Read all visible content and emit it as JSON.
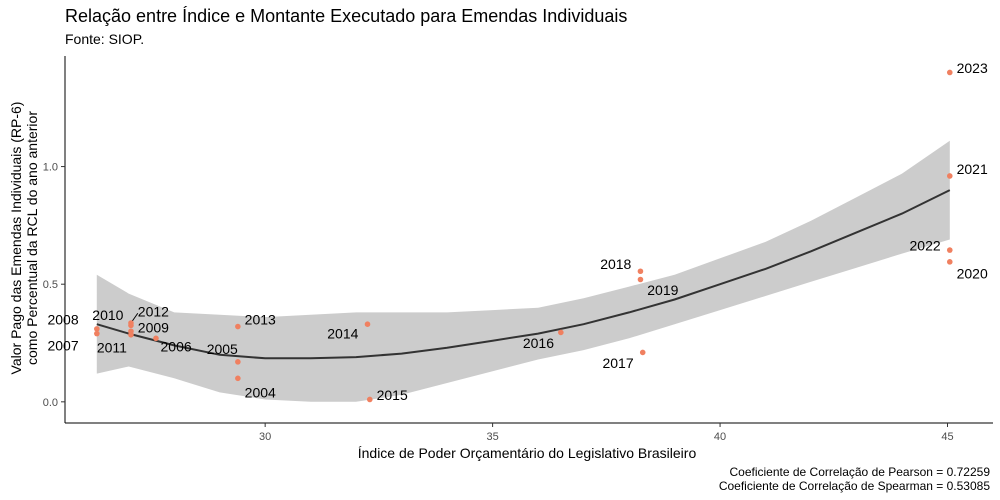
{
  "chart_data": {
    "type": "scatter",
    "title": "Relação entre Índice e Montante Executado para Emendas Individuais",
    "subtitle": "Fonte: SIOP.",
    "xlabel": "Índice de Poder Orçamentário do Legislativo Brasileiro",
    "ylabel_lines": [
      "Valor Pago das Emendas Individuais (RP-6)",
      "como Percentual da RCL do ano anterior"
    ],
    "xlim": [
      25.6,
      46.0
    ],
    "ylim": [
      -0.09,
      1.47
    ],
    "x_ticks": [
      30,
      35,
      40,
      45
    ],
    "y_ticks": [
      0.0,
      0.5,
      1.0
    ],
    "y_tick_labels": [
      "0.0",
      "0.5",
      "1.0"
    ],
    "grid": false,
    "point_color": "#f08060",
    "points": [
      {
        "label": "2007",
        "x": 26.3,
        "y": 0.29,
        "lx": 25.9,
        "ly": 0.24,
        "anchor": "end"
      },
      {
        "label": "2008",
        "x": 26.3,
        "y": 0.31,
        "lx": 25.9,
        "ly": 0.35,
        "anchor": "end"
      },
      {
        "label": "2010",
        "x": 27.05,
        "y": 0.325,
        "lx": 26.2,
        "ly": 0.37,
        "anchor": "start"
      },
      {
        "label": "2012",
        "x": 27.05,
        "y": 0.335,
        "lx": 27.2,
        "ly": 0.385,
        "anchor": "start",
        "leader": true
      },
      {
        "label": "2009",
        "x": 27.05,
        "y": 0.3,
        "lx": 27.2,
        "ly": 0.315,
        "anchor": "start"
      },
      {
        "label": "2011",
        "x": 27.05,
        "y": 0.285,
        "lx": 26.3,
        "ly": 0.23,
        "anchor": "start"
      },
      {
        "label": "2006",
        "x": 27.6,
        "y": 0.27,
        "lx": 27.7,
        "ly": 0.235,
        "anchor": "start"
      },
      {
        "label": "2005",
        "x": 29.4,
        "y": 0.17,
        "lx": 29.4,
        "ly": 0.225,
        "anchor": "end"
      },
      {
        "label": "2013",
        "x": 29.4,
        "y": 0.32,
        "lx": 29.55,
        "ly": 0.35,
        "anchor": "start"
      },
      {
        "label": "2004",
        "x": 29.4,
        "y": 0.1,
        "lx": 29.55,
        "ly": 0.04,
        "anchor": "start"
      },
      {
        "label": "2014",
        "x": 32.25,
        "y": 0.33,
        "lx": 32.05,
        "ly": 0.29,
        "anchor": "end"
      },
      {
        "label": "2015",
        "x": 32.3,
        "y": 0.01,
        "lx": 32.45,
        "ly": 0.03,
        "anchor": "start"
      },
      {
        "label": "2016",
        "x": 36.5,
        "y": 0.295,
        "lx": 36.35,
        "ly": 0.25,
        "anchor": "end"
      },
      {
        "label": "2017",
        "x": 38.3,
        "y": 0.21,
        "lx": 38.1,
        "ly": 0.165,
        "anchor": "end"
      },
      {
        "label": "2018",
        "x": 38.25,
        "y": 0.555,
        "lx": 38.05,
        "ly": 0.585,
        "anchor": "end"
      },
      {
        "label": "2019",
        "x": 38.25,
        "y": 0.52,
        "lx": 38.4,
        "ly": 0.475,
        "anchor": "start"
      },
      {
        "label": "2020",
        "x": 45.05,
        "y": 0.595,
        "lx": 45.2,
        "ly": 0.545,
        "anchor": "start"
      },
      {
        "label": "2021",
        "x": 45.05,
        "y": 0.96,
        "lx": 45.2,
        "ly": 0.99,
        "anchor": "start"
      },
      {
        "label": "2022",
        "x": 45.05,
        "y": 0.645,
        "lx": 44.85,
        "ly": 0.665,
        "anchor": "end"
      },
      {
        "label": "2023",
        "x": 45.05,
        "y": 1.4,
        "lx": 45.2,
        "ly": 1.42,
        "anchor": "start"
      }
    ],
    "smooth": {
      "x": [
        26.3,
        27.0,
        28.0,
        29.0,
        30.0,
        31.0,
        32.0,
        33.0,
        34.0,
        35.0,
        36.0,
        37.0,
        38.0,
        39.0,
        40.0,
        41.0,
        42.0,
        43.0,
        44.0,
        45.05
      ],
      "y": [
        0.33,
        0.29,
        0.24,
        0.2,
        0.185,
        0.185,
        0.19,
        0.205,
        0.23,
        0.26,
        0.29,
        0.33,
        0.38,
        0.435,
        0.5,
        0.565,
        0.64,
        0.72,
        0.8,
        0.9
      ],
      "lower": [
        0.12,
        0.15,
        0.1,
        0.04,
        0.01,
        0.0,
        0.0,
        0.03,
        0.08,
        0.13,
        0.18,
        0.22,
        0.27,
        0.33,
        0.39,
        0.45,
        0.51,
        0.57,
        0.63,
        0.69
      ],
      "upper": [
        0.54,
        0.46,
        0.38,
        0.37,
        0.36,
        0.37,
        0.38,
        0.38,
        0.38,
        0.39,
        0.4,
        0.44,
        0.49,
        0.54,
        0.61,
        0.68,
        0.77,
        0.87,
        0.97,
        1.11
      ],
      "line_color": "#333333",
      "band_color": "#cccccc"
    }
  },
  "captions": {
    "pearson": "Coeficiente de Correlação de Pearson = 0.72259",
    "spearman": "Coeficiente de Correlação de Spearman = 0.53085"
  }
}
